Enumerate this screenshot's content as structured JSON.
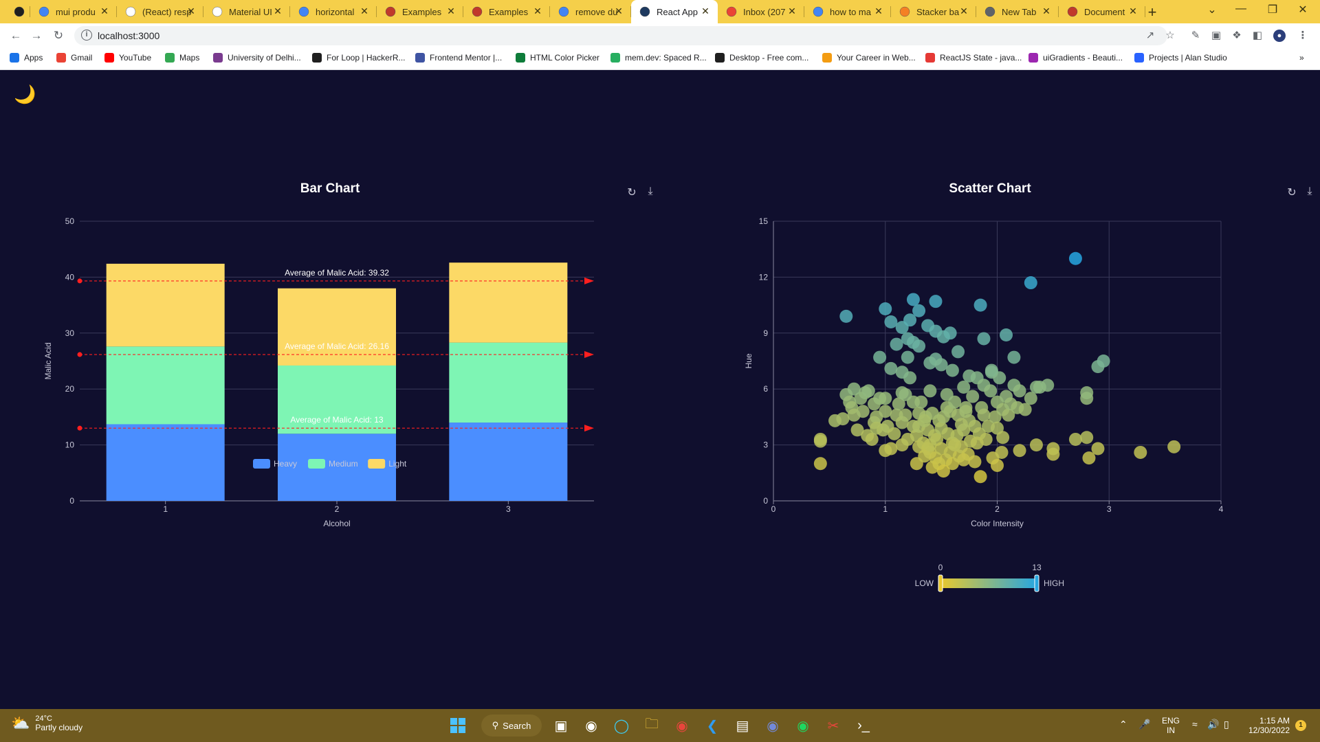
{
  "browser": {
    "tabs": [
      {
        "label": "",
        "icon": "app-icon",
        "color": "#1f1f1f"
      },
      {
        "label": "mui produ",
        "icon": "google-icon",
        "color": "#4285f4"
      },
      {
        "label": "(React) resp",
        "icon": "page-icon",
        "color": "#ffffff"
      },
      {
        "label": "Material UI",
        "icon": "page-icon",
        "color": "#ffffff"
      },
      {
        "label": "horizontal",
        "icon": "google-icon",
        "color": "#4285f4"
      },
      {
        "label": "Examples",
        "icon": "echarts-icon",
        "color": "#c0392b"
      },
      {
        "label": "Examples",
        "icon": "echarts-icon",
        "color": "#c0392b"
      },
      {
        "label": "remove du",
        "icon": "google-icon",
        "color": "#4285f4"
      },
      {
        "label": "React App",
        "icon": "react-icon",
        "color": "#1e3a5f",
        "active": true
      },
      {
        "label": "Inbox (207",
        "icon": "gmail-icon",
        "color": "#ea4335"
      },
      {
        "label": "how to ma",
        "icon": "google-icon",
        "color": "#4285f4"
      },
      {
        "label": "Stacker ba",
        "icon": "stack-icon",
        "color": "#f48024"
      },
      {
        "label": "New Tab",
        "icon": "chrome-icon",
        "color": "#5f6368"
      },
      {
        "label": "Document",
        "icon": "echarts-icon",
        "color": "#c0392b"
      }
    ],
    "url": "localhost:3000",
    "bookmarks": [
      {
        "label": "Apps",
        "color": "#1a73e8"
      },
      {
        "label": "Gmail",
        "color": "#ea4335"
      },
      {
        "label": "YouTube",
        "color": "#ff0000"
      },
      {
        "label": "Maps",
        "color": "#34a853"
      },
      {
        "label": "University of Delhi...",
        "color": "#7a3b8f"
      },
      {
        "label": "For Loop | HackerR...",
        "color": "#1f1f1f"
      },
      {
        "label": "Frontend Mentor |...",
        "color": "#3f54a3"
      },
      {
        "label": "HTML Color Picker",
        "color": "#0e7c3a"
      },
      {
        "label": "mem.dev: Spaced R...",
        "color": "#27ae60"
      },
      {
        "label": "Desktop - Free com...",
        "color": "#1f1f1f"
      },
      {
        "label": "Your Career in Web...",
        "color": "#f39c12"
      },
      {
        "label": "ReactJS State - java...",
        "color": "#e53935"
      },
      {
        "label": "uiGradients - Beauti...",
        "color": "#9c27b0"
      },
      {
        "label": "Projects | Alan Studio",
        "color": "#2962ff"
      }
    ]
  },
  "theme_toggle": "🌙",
  "bar_chart": {
    "title": "Bar Chart",
    "chart_data": {
      "type": "bar",
      "stacked": true,
      "categories": [
        "1",
        "2",
        "3"
      ],
      "series": [
        {
          "name": "Heavy",
          "values": [
            13.7,
            12.0,
            14.0
          ],
          "color": "#4b8eff"
        },
        {
          "name": "Medium",
          "values": [
            13.9,
            12.2,
            14.3
          ],
          "color": "#7ef5b4"
        },
        {
          "name": "Light",
          "values": [
            14.8,
            13.8,
            14.3
          ],
          "color": "#fcd966"
        }
      ],
      "mark_lines": [
        {
          "label": "Average of Malic Acid: 39.32",
          "value": 39.32
        },
        {
          "label": "Average of Malic Acid: 26.16",
          "value": 26.16
        },
        {
          "label": "Average of Malic Acid: 13",
          "value": 13
        }
      ],
      "xlabel": "Alcohol",
      "ylabel": "Malic Acid",
      "ylim": [
        0,
        50
      ],
      "yticks": [
        "0",
        "10",
        "20",
        "30",
        "40",
        "50"
      ],
      "legend_position": "inside-bottom-center",
      "grid": true
    }
  },
  "scatter_chart": {
    "title": "Scatter Chart",
    "chart_data": {
      "type": "scatter",
      "xlabel": "Color Intensity",
      "ylabel": "Hue",
      "xlim": [
        0,
        4
      ],
      "ylim": [
        0,
        15
      ],
      "xticks": [
        "0",
        "1",
        "2",
        "3",
        "4"
      ],
      "yticks": [
        "0",
        "3",
        "6",
        "9",
        "12",
        "15"
      ],
      "grid": true,
      "points": [
        [
          0.42,
          3.2
        ],
        [
          0.42,
          3.3
        ],
        [
          0.42,
          2.0
        ],
        [
          0.55,
          4.3
        ],
        [
          0.65,
          5.7
        ],
        [
          0.65,
          9.9
        ],
        [
          0.68,
          5.3
        ],
        [
          0.7,
          5.0
        ],
        [
          0.72,
          4.6
        ],
        [
          0.78,
          5.5
        ],
        [
          0.75,
          3.8
        ],
        [
          0.8,
          4.8
        ],
        [
          0.82,
          5.8
        ],
        [
          0.84,
          3.5
        ],
        [
          0.88,
          3.3
        ],
        [
          0.85,
          5.9
        ],
        [
          0.9,
          4.2
        ],
        [
          0.9,
          5.2
        ],
        [
          0.92,
          4.5
        ],
        [
          0.95,
          5.5
        ],
        [
          0.98,
          3.8
        ],
        [
          1.0,
          4.8
        ],
        [
          1.0,
          5.5
        ],
        [
          1.0,
          2.7
        ],
        [
          1.02,
          4.0
        ],
        [
          0.95,
          7.7
        ],
        [
          1.05,
          7.1
        ],
        [
          1.05,
          2.8
        ],
        [
          1.08,
          3.6
        ],
        [
          1.1,
          4.6
        ],
        [
          1.12,
          5.2
        ],
        [
          1.15,
          4.2
        ],
        [
          1.15,
          3.0
        ],
        [
          1.15,
          5.8
        ],
        [
          1.18,
          4.6
        ],
        [
          1.2,
          3.3
        ],
        [
          1.2,
          7.7
        ],
        [
          1.22,
          6.6
        ],
        [
          1.25,
          5.3
        ],
        [
          1.25,
          4.0
        ],
        [
          1.28,
          3.5
        ],
        [
          1.28,
          2.0
        ],
        [
          1.3,
          4.7
        ],
        [
          1.3,
          2.9
        ],
        [
          1.3,
          4.0
        ],
        [
          1.32,
          5.3
        ],
        [
          1.34,
          3.1
        ],
        [
          1.35,
          2.4
        ],
        [
          1.36,
          4.5
        ],
        [
          1.38,
          3.8
        ],
        [
          1.38,
          2.8
        ],
        [
          1.4,
          2.6
        ],
        [
          1.4,
          3.0
        ],
        [
          1.42,
          1.8
        ],
        [
          1.44,
          3.5
        ],
        [
          1.45,
          2.3
        ],
        [
          1.46,
          3.3
        ],
        [
          1.48,
          2.0
        ],
        [
          1.48,
          4.3
        ],
        [
          1.5,
          2.8
        ],
        [
          1.5,
          3.9
        ],
        [
          1.52,
          4.5
        ],
        [
          1.54,
          2.2
        ],
        [
          1.55,
          5.0
        ],
        [
          1.56,
          3.6
        ],
        [
          1.58,
          2.6
        ],
        [
          1.58,
          4.8
        ],
        [
          1.6,
          3.1
        ],
        [
          1.6,
          2.0
        ],
        [
          1.62,
          5.3
        ],
        [
          1.64,
          3.5
        ],
        [
          1.65,
          4.6
        ],
        [
          1.66,
          2.4
        ],
        [
          1.68,
          2.9
        ],
        [
          1.7,
          6.1
        ],
        [
          1.7,
          3.8
        ],
        [
          1.72,
          5.0
        ],
        [
          1.74,
          2.5
        ],
        [
          1.75,
          4.3
        ],
        [
          1.76,
          3.2
        ],
        [
          1.78,
          5.6
        ],
        [
          1.8,
          2.1
        ],
        [
          1.8,
          4.0
        ],
        [
          1.82,
          6.6
        ],
        [
          1.84,
          3.6
        ],
        [
          1.86,
          5.0
        ],
        [
          1.88,
          4.6
        ],
        [
          1.88,
          6.2
        ],
        [
          1.9,
          3.3
        ],
        [
          1.92,
          4.0
        ],
        [
          1.94,
          5.9
        ],
        [
          1.95,
          6.9
        ],
        [
          1.96,
          2.3
        ],
        [
          1.98,
          4.5
        ],
        [
          2.0,
          5.3
        ],
        [
          2.0,
          3.9
        ],
        [
          2.02,
          6.6
        ],
        [
          2.04,
          2.6
        ],
        [
          2.05,
          4.9
        ],
        [
          2.08,
          5.6
        ],
        [
          2.1,
          4.6
        ],
        [
          2.12,
          5.2
        ],
        [
          2.15,
          6.2
        ],
        [
          2.18,
          5.0
        ],
        [
          2.2,
          5.9
        ],
        [
          2.25,
          4.9
        ],
        [
          2.3,
          5.5
        ],
        [
          2.35,
          6.1
        ],
        [
          2.38,
          6.1
        ],
        [
          2.45,
          6.2
        ],
        [
          2.35,
          3.0
        ],
        [
          2.5,
          2.5
        ],
        [
          2.5,
          2.8
        ],
        [
          2.7,
          3.3
        ],
        [
          2.8,
          3.4
        ],
        [
          2.8,
          5.5
        ],
        [
          2.8,
          5.8
        ],
        [
          2.82,
          2.3
        ],
        [
          2.9,
          2.8
        ],
        [
          3.28,
          2.6
        ],
        [
          3.58,
          2.9
        ],
        [
          2.9,
          7.2
        ],
        [
          2.95,
          7.5
        ],
        [
          2.15,
          7.7
        ],
        [
          1.88,
          8.7
        ],
        [
          2.08,
          8.9
        ],
        [
          1.85,
          10.5
        ],
        [
          2.3,
          11.7
        ],
        [
          2.7,
          13.0
        ],
        [
          1.25,
          10.8
        ],
        [
          1.45,
          10.7
        ],
        [
          1.0,
          10.3
        ],
        [
          1.05,
          9.6
        ],
        [
          1.15,
          9.3
        ],
        [
          1.22,
          9.7
        ],
        [
          1.3,
          10.2
        ],
        [
          1.38,
          9.4
        ],
        [
          1.45,
          9.1
        ],
        [
          1.52,
          8.8
        ],
        [
          1.58,
          9.0
        ],
        [
          1.1,
          8.4
        ],
        [
          1.2,
          8.7
        ],
        [
          1.3,
          8.3
        ],
        [
          1.45,
          7.6
        ],
        [
          1.4,
          7.4
        ],
        [
          1.5,
          7.3
        ],
        [
          1.6,
          7.0
        ],
        [
          1.65,
          8.0
        ],
        [
          1.15,
          6.9
        ],
        [
          1.25,
          8.5
        ],
        [
          1.4,
          5.9
        ],
        [
          1.42,
          4.7
        ],
        [
          1.55,
          5.7
        ],
        [
          1.68,
          4.1
        ],
        [
          1.72,
          4.8
        ],
        [
          1.82,
          3.1
        ],
        [
          1.85,
          1.3
        ],
        [
          2.0,
          1.9
        ],
        [
          2.2,
          2.7
        ],
        [
          2.05,
          3.4
        ],
        [
          1.62,
          3.0
        ],
        [
          1.52,
          1.6
        ],
        [
          1.7,
          2.2
        ],
        [
          1.35,
          4.3
        ],
        [
          1.18,
          5.7
        ],
        [
          0.92,
          3.9
        ],
        [
          0.72,
          6.0
        ],
        [
          0.62,
          4.4
        ],
        [
          1.75,
          6.7
        ],
        [
          1.95,
          7.0
        ]
      ]
    },
    "visual_map": {
      "min_label": "0",
      "max_label": "13",
      "low_text": "LOW",
      "high_text": "HIGH",
      "colors": [
        "#e8c82e",
        "#27a6e0"
      ]
    }
  },
  "taskbar": {
    "temperature": "24°C",
    "weather": "Partly cloudy",
    "search": "Search",
    "lang1": "ENG",
    "lang2": "IN",
    "time": "1:15 AM",
    "date": "12/30/2022",
    "notification_count": "1"
  }
}
